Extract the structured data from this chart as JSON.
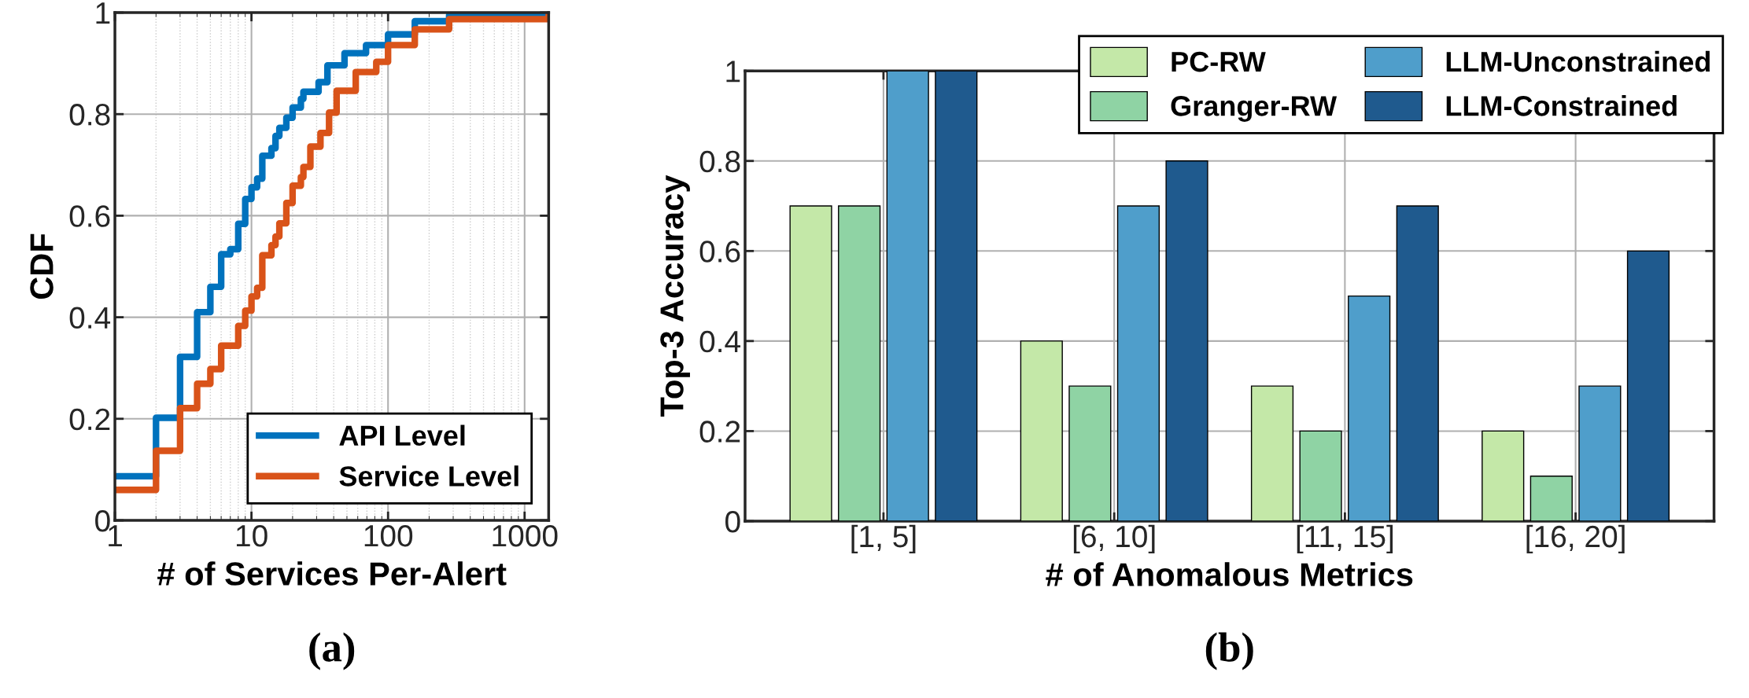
{
  "chart_data": [
    {
      "type": "step",
      "xlabel": "# of Services Per-Alert",
      "ylabel": "CDF",
      "annotations": [
        "(a)"
      ],
      "log": "x",
      "xlim": [
        1,
        1500
      ],
      "xticks": [
        1,
        10,
        100,
        1000
      ],
      "ylim": [
        0,
        1
      ],
      "yticks": [
        0,
        0.2,
        0.4,
        0.6,
        0.8,
        1
      ],
      "grid": true,
      "legend": "bottom right",
      "series": [
        {
          "name": "API Level",
          "color": "#0072bd",
          "x": [
            1,
            2,
            3,
            4,
            5,
            6,
            7,
            8,
            9,
            10,
            11,
            12,
            14,
            15,
            16,
            18,
            20,
            23,
            24,
            31,
            36,
            48,
            69,
            100,
            157,
            280,
            1500
          ],
          "values": [
            0.087,
            0.202,
            0.322,
            0.41,
            0.46,
            0.524,
            0.534,
            0.584,
            0.633,
            0.656,
            0.673,
            0.718,
            0.733,
            0.757,
            0.773,
            0.793,
            0.813,
            0.83,
            0.844,
            0.863,
            0.896,
            0.92,
            0.936,
            0.957,
            0.983,
            0.995,
            1.0
          ]
        },
        {
          "name": "Service Level",
          "color": "#d95319",
          "x": [
            1,
            2,
            3,
            4,
            5,
            6,
            8,
            9,
            10,
            11,
            12,
            14,
            15,
            16,
            18,
            20,
            23,
            24,
            27,
            32,
            37,
            42,
            58,
            82,
            100,
            157,
            280,
            1500
          ],
          "values": [
            0.06,
            0.137,
            0.221,
            0.269,
            0.298,
            0.344,
            0.383,
            0.413,
            0.441,
            0.458,
            0.522,
            0.542,
            0.559,
            0.585,
            0.625,
            0.659,
            0.676,
            0.696,
            0.736,
            0.763,
            0.803,
            0.846,
            0.883,
            0.903,
            0.936,
            0.967,
            0.987,
            0.997
          ]
        }
      ]
    },
    {
      "type": "bar",
      "xlabel": "# of Anomalous Metrics",
      "ylabel": "Top-3 Accuracy",
      "annotations": [
        "(b)"
      ],
      "categories": [
        "[1, 5]",
        "[6, 10]",
        "[11, 15]",
        "[16, 20]"
      ],
      "ylim": [
        0,
        1
      ],
      "yticks": [
        0,
        0.2,
        0.4,
        0.6,
        0.8,
        1
      ],
      "grid": true,
      "legend": "top right",
      "series": [
        {
          "name": "PC-RW",
          "color": "#c4e8a8",
          "values": [
            0.7,
            0.4,
            0.3,
            0.2
          ]
        },
        {
          "name": "Granger-RW",
          "color": "#8fd3a4",
          "values": [
            0.7,
            0.3,
            0.2,
            0.1
          ]
        },
        {
          "name": "LLM-Unconstrained",
          "color": "#4f9ecb",
          "values": [
            1.0,
            0.7,
            0.5,
            0.3
          ]
        },
        {
          "name": "LLM-Constrained",
          "color": "#1f5a8e",
          "values": [
            1.0,
            0.8,
            0.7,
            0.6
          ]
        }
      ]
    }
  ]
}
